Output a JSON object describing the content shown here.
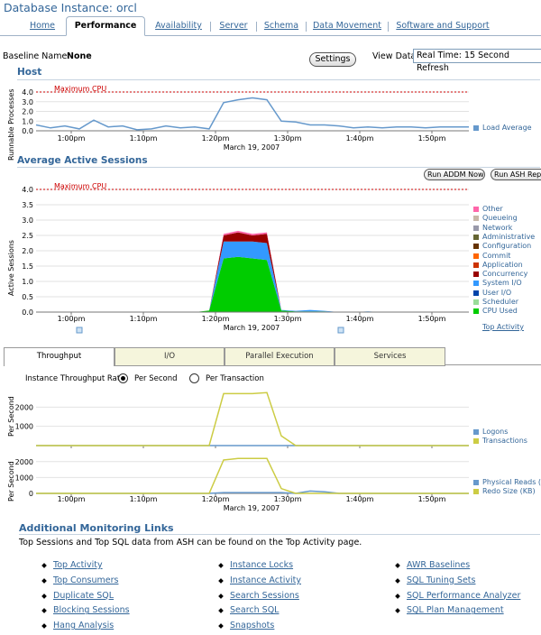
{
  "page_title": "Database Instance: orcl",
  "tabs": [
    "Home",
    "Performance",
    "Availability",
    "Server",
    "Schema",
    "Data Movement",
    "Software and Support"
  ],
  "baseline": {
    "label": "Baseline Name",
    "value": "None"
  },
  "settings_label": "Settings",
  "view_data": {
    "label": "View Data",
    "value": "Real Time: 15 Second Refresh"
  },
  "host": {
    "heading": "Host",
    "ylabel": "Runnable Processes",
    "max_label": "Maximum CPU",
    "legend": "Load Average"
  },
  "aas": {
    "heading": "Average Active Sessions",
    "ylabel": "Active Sessions",
    "max_label": "Maximum CPU",
    "run_addm": "Run ADDM Now",
    "run_ash": "Run ASH Report",
    "top_activity": "Top Activity",
    "legend": [
      "Other",
      "Queueing",
      "Network",
      "Administrative",
      "Configuration",
      "Commit",
      "Application",
      "Concurrency",
      "System I/O",
      "User I/O",
      "Scheduler",
      "CPU Used"
    ]
  },
  "throughput": {
    "tabs": [
      "Throughput",
      "I/O",
      "Parallel Execution",
      "Services"
    ],
    "rate_label": "Instance Throughput Rate",
    "per_second": "Per Second",
    "per_transaction": "Per Transaction",
    "ylabel": "Per Second",
    "legend1": [
      "Logons",
      "Transactions"
    ],
    "legend2": [
      "Physical Reads (KB)",
      "Redo Size (KB)"
    ]
  },
  "xaxis": {
    "ticks": [
      "1:00pm",
      "1:10pm",
      "1:20pm",
      "1:30pm",
      "1:40pm",
      "1:50pm"
    ],
    "date": "March 19, 2007"
  },
  "links": {
    "heading": "Additional Monitoring Links",
    "note": "Top Sessions and Top SQL data from ASH can be found on the Top Activity page.",
    "col1": [
      "Top Activity",
      "Top Consumers",
      "Duplicate SQL",
      "Blocking Sessions",
      "Hang Analysis"
    ],
    "col2": [
      "Instance Locks",
      "Instance Activity",
      "Search Sessions",
      "Search SQL",
      "Snapshots"
    ],
    "col3": [
      "AWR Baselines",
      "SQL Tuning Sets",
      "SQL Performance Analyzer",
      "SQL Plan Management"
    ]
  },
  "colors": {
    "link": "#336699",
    "max_cpu": "#cc0000",
    "load_avg": "#6699cc",
    "cpu_used": "#00cc00",
    "user_io": "#0044aa",
    "system_io": "#3399ff",
    "concurrency": "#990000",
    "application": "#cc3300",
    "commit": "#ff6600",
    "configuration": "#663300",
    "administrative": "#666633",
    "network": "#9999aa",
    "queueing": "#c8b8a8",
    "other": "#ff66aa",
    "transactions": "#cccc44",
    "logons": "#6699cc"
  },
  "chart_data": [
    {
      "type": "line",
      "title": "Host",
      "ylabel": "Runnable Processes",
      "ylim": [
        0,
        4.0
      ],
      "yticks": [
        0.0,
        1.0,
        2.0,
        3.0,
        4.0
      ],
      "threshold": {
        "label": "Maximum CPU",
        "value": 4.0
      },
      "x": [
        "12:55",
        "12:57",
        "12:59",
        "1:01",
        "1:03",
        "1:05",
        "1:07",
        "1:09",
        "1:11",
        "1:13",
        "1:15",
        "1:17",
        "1:19",
        "1:21",
        "1:23",
        "1:25",
        "1:27",
        "1:29",
        "1:31",
        "1:33",
        "1:35",
        "1:37",
        "1:39",
        "1:41",
        "1:43",
        "1:45",
        "1:47",
        "1:49",
        "1:51",
        "1:53",
        "1:55"
      ],
      "series": [
        {
          "name": "Load Average",
          "values": [
            0.6,
            0.3,
            0.5,
            0.2,
            1.1,
            0.4,
            0.5,
            0.1,
            0.2,
            0.5,
            0.3,
            0.4,
            0.2,
            2.9,
            3.2,
            3.4,
            3.2,
            1.0,
            0.9,
            0.6,
            0.6,
            0.5,
            0.3,
            0.4,
            0.3,
            0.4,
            0.4,
            0.3,
            0.4,
            0.4,
            0.4
          ]
        }
      ]
    },
    {
      "type": "area",
      "title": "Average Active Sessions",
      "ylabel": "Active Sessions",
      "ylim": [
        0,
        4.0
      ],
      "yticks": [
        0.0,
        0.5,
        1.0,
        1.5,
        2.0,
        2.5,
        3.0,
        3.5,
        4.0
      ],
      "threshold": {
        "label": "Maximum CPU",
        "value": 4.0
      },
      "x": [
        "12:55",
        "12:57",
        "12:59",
        "1:01",
        "1:03",
        "1:05",
        "1:07",
        "1:09",
        "1:11",
        "1:13",
        "1:15",
        "1:17",
        "1:19",
        "1:21",
        "1:23",
        "1:25",
        "1:27",
        "1:29",
        "1:31",
        "1:33",
        "1:35",
        "1:37",
        "1:39",
        "1:41",
        "1:43",
        "1:45",
        "1:47",
        "1:49",
        "1:51",
        "1:53",
        "1:55"
      ],
      "series": [
        {
          "name": "CPU Used",
          "values": [
            0,
            0,
            0,
            0,
            0,
            0,
            0,
            0,
            0,
            0,
            0,
            0,
            0.05,
            1.75,
            1.8,
            1.75,
            1.7,
            0.05,
            0.02,
            0.02,
            0.02,
            0,
            0,
            0,
            0,
            0,
            0,
            0,
            0,
            0,
            0
          ]
        },
        {
          "name": "System I/O",
          "values": [
            0,
            0,
            0,
            0,
            0,
            0,
            0,
            0,
            0,
            0,
            0,
            0,
            0,
            0.55,
            0.5,
            0.55,
            0.55,
            0.02,
            0.02,
            0.05,
            0.02,
            0,
            0,
            0.02,
            0,
            0,
            0,
            0,
            0,
            0,
            0
          ]
        },
        {
          "name": "Concurrency",
          "values": [
            0,
            0,
            0,
            0,
            0,
            0,
            0,
            0,
            0,
            0,
            0,
            0,
            0,
            0.2,
            0.3,
            0.2,
            0.3,
            0,
            0,
            0,
            0,
            0,
            0,
            0,
            0,
            0,
            0,
            0,
            0,
            0,
            0
          ]
        },
        {
          "name": "Other",
          "values": [
            0,
            0,
            0,
            0,
            0,
            0,
            0,
            0,
            0,
            0,
            0,
            0,
            0,
            0.05,
            0.05,
            0.05,
            0.05,
            0,
            0,
            0,
            0,
            0,
            0,
            0,
            0,
            0,
            0,
            0,
            0,
            0,
            0
          ]
        }
      ]
    },
    {
      "type": "line",
      "ylabel": "Per Second",
      "ylim": [
        0,
        3000
      ],
      "yticks": [
        1000,
        2000
      ],
      "x": [
        "12:55",
        "12:57",
        "12:59",
        "1:01",
        "1:03",
        "1:05",
        "1:07",
        "1:09",
        "1:11",
        "1:13",
        "1:15",
        "1:17",
        "1:19",
        "1:21",
        "1:23",
        "1:25",
        "1:27",
        "1:29",
        "1:31",
        "1:33",
        "1:35",
        "1:37",
        "1:39",
        "1:41",
        "1:43",
        "1:45",
        "1:47",
        "1:49",
        "1:51",
        "1:53",
        "1:55"
      ],
      "series": [
        {
          "name": "Logons",
          "values": [
            0,
            0,
            0,
            0,
            0,
            0,
            0,
            0,
            0,
            0,
            0,
            0,
            0,
            0,
            0,
            0,
            0,
            0,
            0,
            0,
            0,
            0,
            0,
            0,
            0,
            0,
            0,
            0,
            0,
            0,
            0
          ]
        },
        {
          "name": "Transactions",
          "values": [
            0,
            0,
            0,
            0,
            0,
            0,
            0,
            0,
            0,
            0,
            0,
            0,
            0,
            2700,
            2700,
            2700,
            2750,
            500,
            0,
            0,
            0,
            0,
            0,
            0,
            0,
            0,
            0,
            0,
            0,
            0,
            0
          ]
        }
      ]
    },
    {
      "type": "line",
      "ylabel": "Per Second",
      "ylim": [
        0,
        2500
      ],
      "yticks": [
        0,
        1000,
        2000
      ],
      "x": [
        "12:55",
        "12:57",
        "12:59",
        "1:01",
        "1:03",
        "1:05",
        "1:07",
        "1:09",
        "1:11",
        "1:13",
        "1:15",
        "1:17",
        "1:19",
        "1:21",
        "1:23",
        "1:25",
        "1:27",
        "1:29",
        "1:31",
        "1:33",
        "1:35",
        "1:37",
        "1:39",
        "1:41",
        "1:43",
        "1:45",
        "1:47",
        "1:49",
        "1:51",
        "1:53",
        "1:55"
      ],
      "series": [
        {
          "name": "Physical Reads (KB)",
          "values": [
            0,
            0,
            0,
            0,
            0,
            0,
            0,
            0,
            0,
            0,
            0,
            0,
            0,
            50,
            50,
            50,
            50,
            50,
            0,
            150,
            100,
            0,
            0,
            0,
            0,
            0,
            0,
            0,
            0,
            0,
            0
          ]
        },
        {
          "name": "Redo Size (KB)",
          "values": [
            0,
            0,
            0,
            0,
            0,
            0,
            0,
            0,
            0,
            0,
            0,
            0,
            0,
            2100,
            2200,
            2200,
            2200,
            300,
            0,
            0,
            0,
            0,
            0,
            0,
            0,
            0,
            0,
            0,
            0,
            0,
            0
          ]
        }
      ]
    }
  ]
}
